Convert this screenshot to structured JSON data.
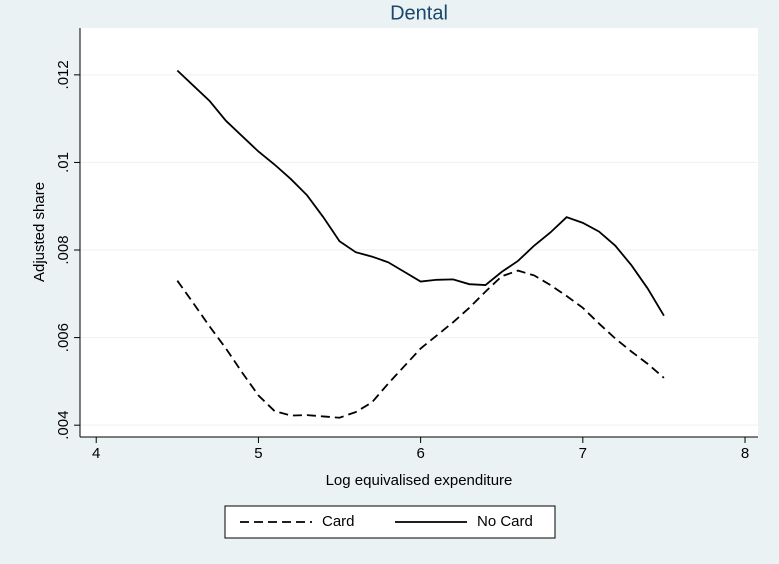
{
  "chart_data": {
    "type": "line",
    "title": "Dental",
    "x_label": "Log equivalised expenditure",
    "y_label": "Adjusted share",
    "x": [
      4.5,
      4.6,
      4.7,
      4.8,
      4.9,
      5.0,
      5.1,
      5.2,
      5.3,
      5.4,
      5.5,
      5.6,
      5.7,
      5.8,
      5.9,
      6.0,
      6.1,
      6.2,
      6.3,
      6.4,
      6.5,
      6.6,
      6.7,
      6.8,
      6.9,
      7.0,
      7.1,
      7.2,
      7.3,
      7.4,
      7.5
    ],
    "series": [
      {
        "name": "Card",
        "color": "#000000",
        "line_style": "dashed",
        "values": [
          0.0073,
          0.00678,
          0.00625,
          0.00575,
          0.0052,
          0.00468,
          0.00432,
          0.00422,
          0.00423,
          0.0042,
          0.00417,
          0.0043,
          0.00452,
          0.00495,
          0.00535,
          0.00575,
          0.00605,
          0.00635,
          0.00668,
          0.00705,
          0.0074,
          0.00753,
          0.00742,
          0.0072,
          0.00695,
          0.00668,
          0.00632,
          0.00598,
          0.00568,
          0.0054,
          0.00508
        ]
      },
      {
        "name": "No Card",
        "color": "#000000",
        "line_style": "solid",
        "values": [
          0.0121,
          0.01175,
          0.0114,
          0.01095,
          0.0106,
          0.01025,
          0.00995,
          0.00962,
          0.00925,
          0.00875,
          0.0082,
          0.00795,
          0.00785,
          0.00772,
          0.0075,
          0.00728,
          0.00732,
          0.00733,
          0.00722,
          0.0072,
          0.0075,
          0.00775,
          0.0081,
          0.0084,
          0.00875,
          0.00862,
          0.00842,
          0.0081,
          0.00765,
          0.00712,
          0.0065
        ]
      }
    ],
    "xlim": [
      3.9,
      8.08
    ],
    "xticks": [
      4,
      5,
      6,
      7,
      8
    ],
    "ylim": [
      0.00373,
      0.01307
    ],
    "yticks": [
      {
        "value": 0.004,
        "label": ".004"
      },
      {
        "value": 0.006,
        "label": ".006"
      },
      {
        "value": 0.008,
        "label": ".008"
      },
      {
        "value": 0.01,
        "label": ".01"
      },
      {
        "value": 0.012,
        "label": ".012"
      }
    ],
    "grid": true,
    "legend": "bottom"
  }
}
